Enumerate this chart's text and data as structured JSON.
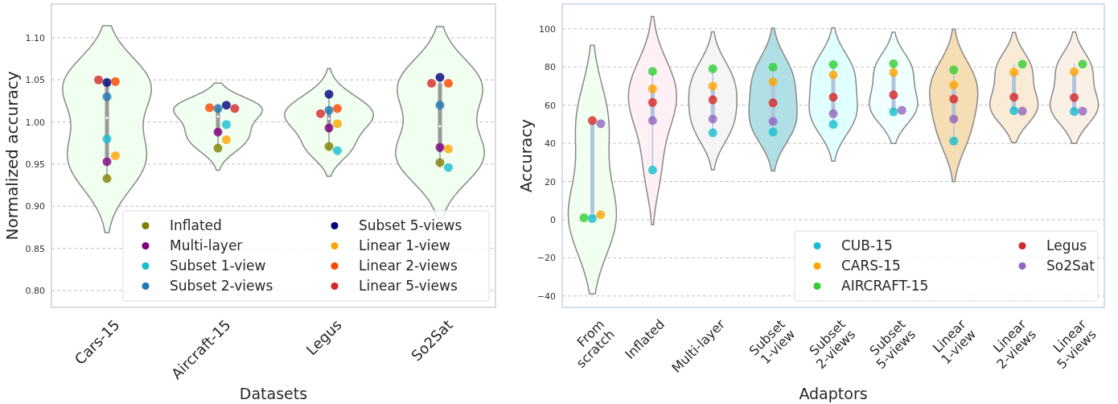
{
  "chart_data": [
    {
      "type": "scatter",
      "xlabel": "Datasets",
      "ylabel": "Normalized accuracy",
      "categories": [
        "Cars-15",
        "Aircraft-15",
        "Legus",
        "So2Sat"
      ],
      "colors": [
        "#f0fff0",
        "#f0fff0",
        "#f0fff0",
        "#f0fff0"
      ],
      "ylim": [
        0.78,
        1.14
      ],
      "yticks": [
        {
          "value": 0.8,
          "label": "0.80"
        },
        {
          "value": 0.85,
          "label": "0.85"
        },
        {
          "value": 0.9,
          "label": "0.90"
        },
        {
          "value": 0.95,
          "label": "0.95"
        },
        {
          "value": 1.0,
          "label": "1.00"
        },
        {
          "value": 1.05,
          "label": "1.05"
        },
        {
          "value": 1.1,
          "label": "1.10"
        }
      ],
      "grid": "y",
      "legend": "bottom right",
      "marker": "circle",
      "series": [
        {
          "name": "Inflated",
          "color": "#808000",
          "values": [
            0.933,
            0.969,
            0.971,
            0.952
          ]
        },
        {
          "name": "Multi-layer",
          "color": "#800080",
          "values": [
            0.953,
            0.988,
            0.993,
            0.97
          ]
        },
        {
          "name": "Subset 1-view",
          "color": "#17becf",
          "values": [
            0.98,
            0.997,
            0.966,
            0.946
          ]
        },
        {
          "name": "Subset 2-views",
          "color": "#1f77b4",
          "values": [
            1.03,
            1.016,
            1.014,
            1.02
          ]
        },
        {
          "name": "Subset 5-views",
          "color": "#000080",
          "values": [
            1.047,
            1.02,
            1.033,
            1.053
          ]
        },
        {
          "name": "Linear 1-view",
          "color": "#ffa500",
          "values": [
            0.96,
            0.979,
            0.998,
            0.968
          ]
        },
        {
          "name": "Linear 2-views",
          "color": "#ff4500",
          "values": [
            1.048,
            1.017,
            1.016,
            1.046
          ]
        },
        {
          "name": "Linear 5-views",
          "color": "#d62728",
          "values": [
            1.05,
            1.016,
            1.01,
            1.046
          ]
        }
      ]
    },
    {
      "type": "scatter",
      "xlabel": "Adaptors",
      "ylabel": "Accuracy",
      "categories": [
        "From\nscratch",
        "Inflated",
        "Multi-layer",
        "Subset\n1-view",
        "Subset\n2-views",
        "Subset\n5-views",
        "Linear\n1-view",
        "Linear\n2-views",
        "Linear\n5-views"
      ],
      "colors": [
        "#f0fff0",
        "#fff0f5",
        "#f5f5f5",
        "#b0e0e6",
        "#e0ffff",
        "#f0ffff",
        "#f5deb3",
        "#faebd7",
        "#faf0e6"
      ],
      "ylim": [
        -46,
        113
      ],
      "yticks": [
        {
          "value": -40,
          "label": "−40"
        },
        {
          "value": -20,
          "label": "−20"
        },
        0,
        20,
        40,
        60,
        80,
        100
      ],
      "grid": "y",
      "legend": "bottom right",
      "marker": "circle",
      "series": [
        {
          "name": "CUB-15",
          "color": "#17becf",
          "values": [
            0.6,
            26.0,
            45.5,
            45.9,
            49.9,
            56.5,
            41.2,
            57.1,
            56.7
          ]
        },
        {
          "name": "CARS-15",
          "color": "#ffa500",
          "values": [
            2.6,
            68.6,
            70.0,
            72.2,
            75.9,
            77.1,
            70.6,
            77.3,
            77.5
          ]
        },
        {
          "name": "AIRCRAFT-15",
          "color": "#32cd32",
          "values": [
            1.0,
            77.7,
            79.1,
            79.9,
            81.3,
            81.7,
            78.5,
            81.5,
            81.5
          ]
        },
        {
          "name": "Legus",
          "color": "#d62728",
          "values": [
            51.9,
            61.4,
            62.8,
            61.2,
            64.2,
            65.4,
            63.2,
            64.2,
            64.0
          ]
        },
        {
          "name": "So2Sat",
          "color": "#9467bd",
          "values": [
            50.3,
            51.9,
            52.7,
            51.5,
            55.5,
            57.3,
            52.7,
            56.9,
            56.9
          ]
        }
      ]
    }
  ]
}
